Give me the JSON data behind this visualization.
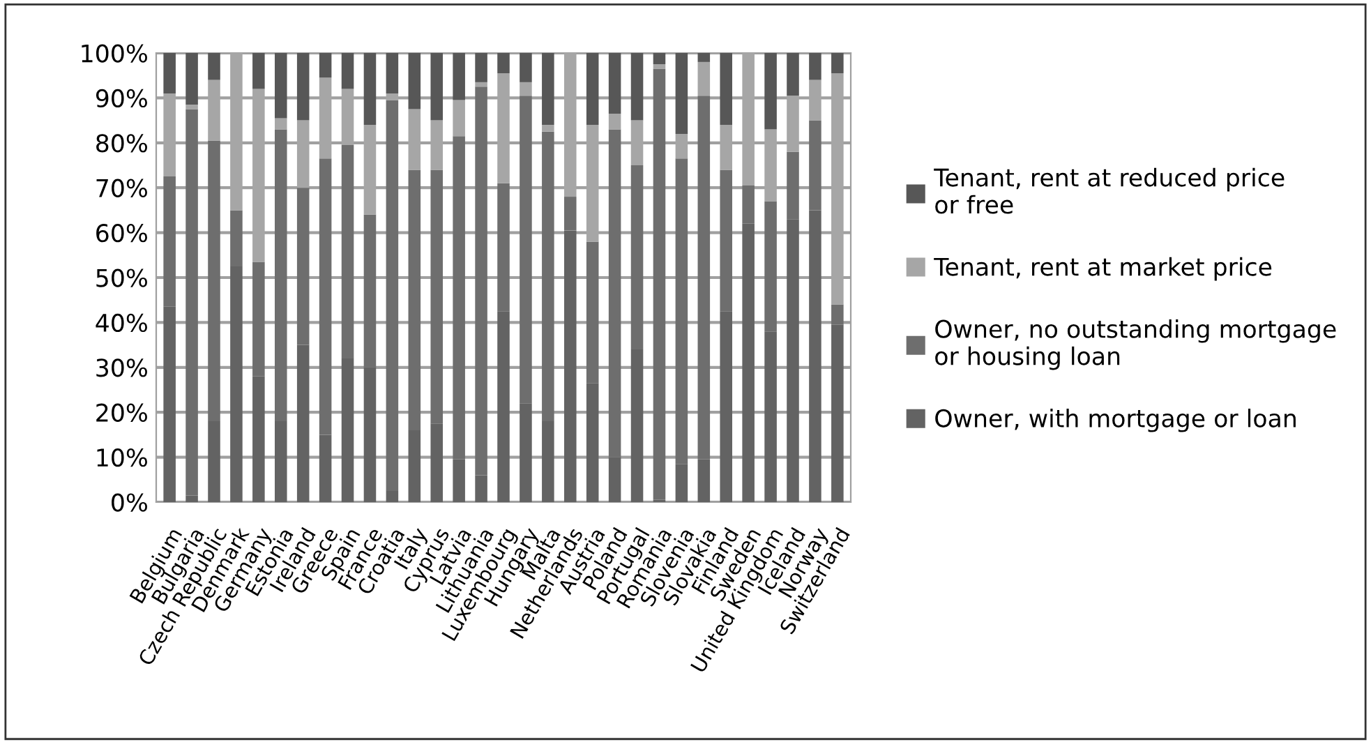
{
  "chart_data": {
    "type": "bar",
    "stacked": true,
    "categories": [
      "Belgium",
      "Bulgaria",
      "Czech Republic",
      "Denmark",
      "Germany",
      "Estonia",
      "Ireland",
      "Greece",
      "Spain",
      "France",
      "Croatia",
      "Italy",
      "Cyprus",
      "Latvia",
      "Lithuania",
      "Luxembourg",
      "Hungary",
      "Malta",
      "Netherlands",
      "Austria",
      "Poland",
      "Portugal",
      "Romania",
      "Slovenia",
      "Slovakia",
      "Finland",
      "Sweden",
      "United Kingdom",
      "Iceland",
      "Norway",
      "Switzerland"
    ],
    "series": [
      {
        "name": "Owner, with mortgage or loan",
        "color": "#636363",
        "values": [
          43.5,
          1.5,
          18,
          52.5,
          28,
          18,
          35,
          15,
          32,
          30,
          2.5,
          16,
          17.5,
          9.5,
          6,
          42.5,
          22,
          18,
          60.5,
          26.5,
          10,
          34,
          0.5,
          8.5,
          9.5,
          42.5,
          62,
          38,
          63,
          65,
          39.5
        ]
      },
      {
        "name": "Owner, no outstanding mortgage or housing loan",
        "color": "#6e6e6e",
        "values": [
          29,
          86,
          62.5,
          12.5,
          25.5,
          65,
          35,
          61.5,
          47.5,
          34,
          87,
          58,
          56.5,
          72,
          86.5,
          28.5,
          68.5,
          64.5,
          7.5,
          31.5,
          73,
          41,
          96,
          68,
          81,
          31.5,
          8.5,
          29,
          15,
          20,
          4.5
        ]
      },
      {
        "name": "Tenant, rent at market price",
        "color": "#a6a6a6",
        "values": [
          18.5,
          1,
          13.5,
          35,
          38.5,
          2.5,
          15,
          18,
          12.5,
          20,
          1.5,
          13.5,
          11,
          8,
          1,
          24.5,
          3,
          1.5,
          32,
          26,
          3.5,
          10,
          1,
          5.5,
          7.5,
          10,
          29.5,
          16,
          12.5,
          9,
          51.5
        ]
      },
      {
        "name": "Tenant, rent at reduced price or free",
        "color": "#575757",
        "values": [
          9,
          11.5,
          6,
          0,
          8,
          14.5,
          15,
          5.5,
          8,
          16,
          9,
          12.5,
          15,
          10.5,
          6.5,
          4.5,
          6.5,
          16,
          0,
          16,
          13.5,
          15,
          2.5,
          18,
          2,
          16,
          0,
          17,
          9.5,
          6,
          4.5
        ]
      }
    ],
    "ylim": [
      0,
      100
    ],
    "yticks": [
      {
        "value": 0,
        "label": "0%"
      },
      {
        "value": 10,
        "label": "10%"
      },
      {
        "value": 20,
        "label": "20%"
      },
      {
        "value": 30,
        "label": "30%"
      },
      {
        "value": 40,
        "label": "40%"
      },
      {
        "value": 50,
        "label": "50%"
      },
      {
        "value": 60,
        "label": "60%"
      },
      {
        "value": 70,
        "label": "70%"
      },
      {
        "value": 80,
        "label": "80%"
      },
      {
        "value": 90,
        "label": "90%"
      },
      {
        "value": 100,
        "label": "100%"
      }
    ],
    "grid": "y",
    "legend": "right"
  }
}
